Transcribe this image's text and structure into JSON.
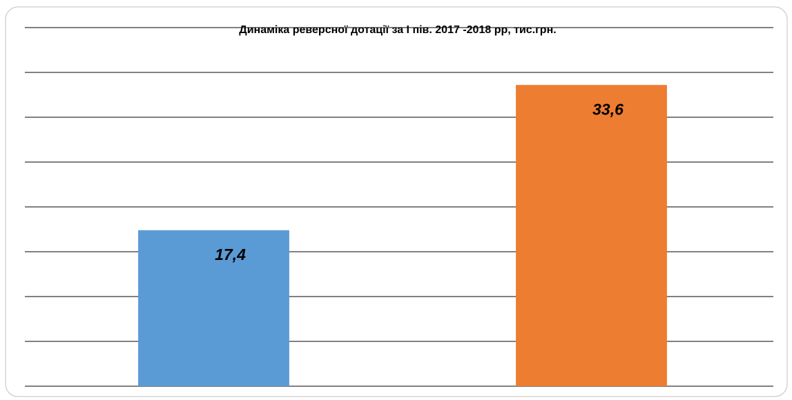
{
  "chart_data": {
    "type": "bar",
    "title": "Динаміка реверсної дотації  за І пів. 2017 -2018 рр, тис.грн.",
    "categories": [
      null,
      null
    ],
    "values": [
      17.4,
      33.6
    ],
    "value_labels": [
      "17,4",
      "33,6"
    ],
    "colors": [
      "#5b9bd5",
      "#ed7d31"
    ],
    "ylim": [
      0,
      40
    ],
    "yticks": [
      0,
      5,
      10,
      15,
      20,
      25,
      30,
      35,
      40
    ],
    "grid": true
  }
}
